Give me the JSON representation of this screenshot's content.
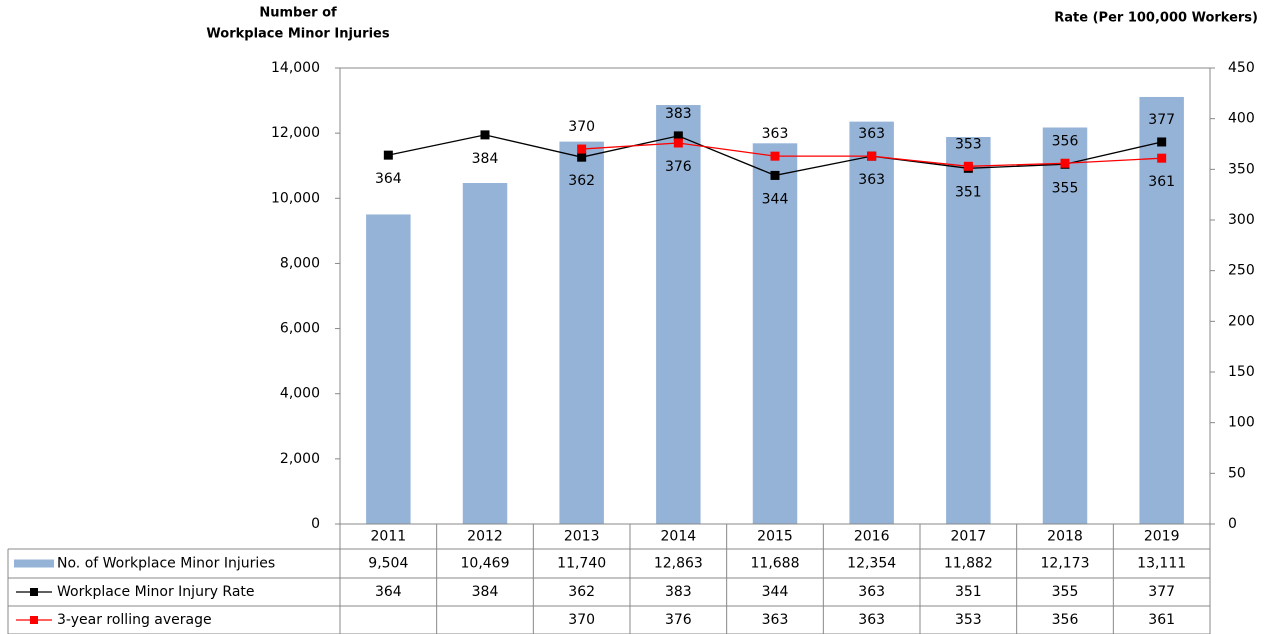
{
  "chart_data": {
    "type": "bar-line",
    "y_label": [
      "Number of",
      "Workplace Minor Injuries"
    ],
    "y2_label": "Rate (Per 100,000 Workers)",
    "categories": [
      "2011",
      "2012",
      "2013",
      "2014",
      "2015",
      "2016",
      "2017",
      "2018",
      "2019"
    ],
    "series": [
      {
        "name": "No. of Workplace Minor Injuries",
        "type": "bar",
        "color": "#95b3d7",
        "values": [
          9504,
          10469,
          11740,
          12863,
          11688,
          12354,
          11882,
          12173,
          13111
        ],
        "value_labels": [
          "9,504",
          "10,469",
          "11,740",
          "12,863",
          "11,688",
          "12,354",
          "11,882",
          "12,173",
          "13,111"
        ]
      },
      {
        "name": "Workplace Minor Injury Rate",
        "type": "line",
        "axis": "y2",
        "color": "#000000",
        "values": [
          364,
          384,
          362,
          383,
          344,
          363,
          351,
          355,
          377
        ]
      },
      {
        "name": "3-year rolling average",
        "type": "line",
        "axis": "y2",
        "color": "#ff0000",
        "values": [
          null,
          null,
          370,
          376,
          363,
          363,
          353,
          356,
          361
        ]
      }
    ],
    "ylim": [
      0,
      14000
    ],
    "yticks": [
      0,
      {
        "value": 2000,
        "label": "2,000"
      },
      {
        "value": 4000,
        "label": "4,000"
      },
      {
        "value": 6000,
        "label": "6,000"
      },
      {
        "value": 8000,
        "label": "8,000"
      },
      {
        "value": 10000,
        "label": "10,000"
      },
      {
        "value": 12000,
        "label": "12,000"
      },
      {
        "value": 14000,
        "label": "14,000"
      }
    ],
    "y2lim": [
      0,
      450
    ],
    "y2ticks": [
      0,
      50,
      100,
      150,
      200,
      250,
      300,
      350,
      400,
      450
    ],
    "grid": false
  }
}
